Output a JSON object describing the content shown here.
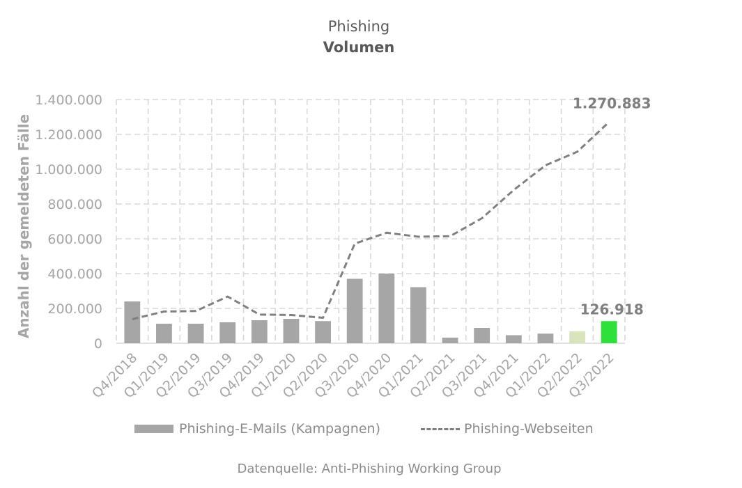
{
  "title": "Phishing",
  "subtitle": "Volumen",
  "source": "Datenquelle: Anti-Phishing Working Group",
  "chart_data": {
    "type": "bar",
    "categories": [
      "Q4/2018",
      "Q1/2019",
      "Q2/2019",
      "Q3/2019",
      "Q4/2019",
      "Q1/2020",
      "Q2/2020",
      "Q3/2020",
      "Q4/2020",
      "Q1/2021",
      "Q2/2021",
      "Q3/2021",
      "Q4/2021",
      "Q1/2022",
      "Q2/2022",
      "Q3/2022"
    ],
    "ylabel": "Anzahl der gemeldeten Fälle",
    "ylim": [
      0,
      1400000
    ],
    "yticks": [
      "0",
      "200.000",
      "400.000",
      "600.000",
      "800.000",
      "1.000.000",
      "1.200.000",
      "1.400.000"
    ],
    "grid": true,
    "legend_position": "bottom",
    "series": [
      {
        "name": "Phishing-E-Mails (Kampagnen)",
        "type": "bar",
        "color": "#a6a6a6",
        "values": [
          240000,
          112000,
          112000,
          120000,
          132000,
          140000,
          127000,
          370000,
          400000,
          322000,
          32000,
          88000,
          46000,
          55000,
          68000,
          126918
        ],
        "highlight_colors": {
          "14": "#d8e4bc",
          "15": "#2ee03a"
        }
      },
      {
        "name": "Phishing-Webseiten",
        "type": "line",
        "style": "dashed",
        "color": "#808080",
        "values": [
          138000,
          182000,
          185000,
          268000,
          165000,
          162000,
          146000,
          572000,
          635000,
          612000,
          615000,
          718000,
          880000,
          1022000,
          1100000,
          1270883
        ]
      }
    ],
    "annotations": [
      {
        "text": "1.270.883",
        "series": 1,
        "index": 15
      },
      {
        "text": "126.918",
        "series": 0,
        "index": 15
      }
    ]
  }
}
